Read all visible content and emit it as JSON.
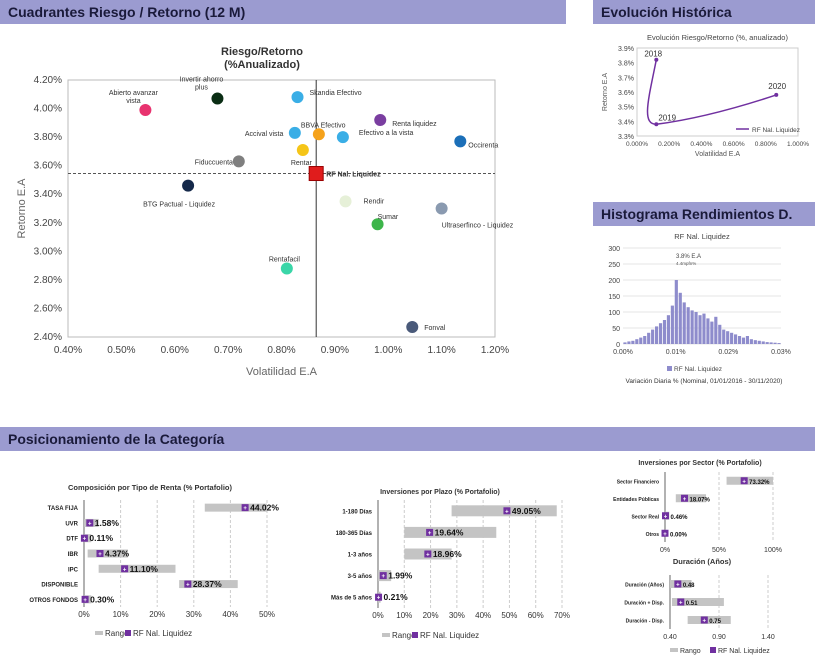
{
  "headers": {
    "risk_return": "Cuadrantes Riesgo / Retorno (12 M)",
    "evolution": "Evolución Histórica",
    "histogram": "Histograma Rendimientos D.",
    "positioning": "Posicionamiento de la Categoría"
  },
  "chart_data": [
    {
      "id": "scatter",
      "type": "scatter",
      "title": "Riesgo/Retorno",
      "subtitle": "(%Anualizado)",
      "xlabel": "Volatilidad E.A",
      "ylabel": "Retorno E.A",
      "xlim": [
        0.4,
        1.2
      ],
      "ylim": [
        2.4,
        4.2
      ],
      "x_ticks": [
        "0.40%",
        "0.50%",
        "0.60%",
        "0.70%",
        "0.80%",
        "0.90%",
        "1.00%",
        "1.10%",
        "1.20%"
      ],
      "y_ticks": [
        "2.40%",
        "2.60%",
        "2.80%",
        "3.00%",
        "3.20%",
        "3.40%",
        "3.60%",
        "3.80%",
        "4.00%",
        "4.20%"
      ],
      "ref_lines": {
        "x": 0.865,
        "y": 3.545
      },
      "points": [
        {
          "label": "Abierto avanzar vista",
          "x": 0.545,
          "y": 3.99,
          "color": "#e8336f"
        },
        {
          "label": "Invertir ahorro plus",
          "x": 0.68,
          "y": 4.07,
          "color": "#0a2d14"
        },
        {
          "label": "Skandia Efectivo",
          "x": 0.83,
          "y": 4.08,
          "color": "#3aaee6"
        },
        {
          "label": "BBVA Efectivo",
          "x": 0.87,
          "y": 3.82,
          "color": "#f5a21b"
        },
        {
          "label": "Accival vista",
          "x": 0.825,
          "y": 3.83,
          "color": "#3aaee6"
        },
        {
          "label": "Efectivo a la vista",
          "x": 0.915,
          "y": 3.8,
          "color": "#3aaee6"
        },
        {
          "label": "Renta liquidez",
          "x": 0.985,
          "y": 3.92,
          "color": "#7a3ea0"
        },
        {
          "label": "Occirenta",
          "x": 1.135,
          "y": 3.77,
          "color": "#1b6fb8"
        },
        {
          "label": "Fiduccuenta",
          "x": 0.72,
          "y": 3.63,
          "color": "#7f7f7f"
        },
        {
          "label": "Rentar",
          "x": 0.84,
          "y": 3.71,
          "color": "#f5c518"
        },
        {
          "label": "RF Nal. Liquidez",
          "x": 0.865,
          "y": 3.545,
          "color": "#e01c1c"
        },
        {
          "label": "BTG Pactual - Liquidez",
          "x": 0.625,
          "y": 3.46,
          "color": "#15294a"
        },
        {
          "label": "Rendir",
          "x": 0.92,
          "y": 3.35,
          "color": "#e6f0d8"
        },
        {
          "label": "Ultraserfinco - Liquidez",
          "x": 1.1,
          "y": 3.3,
          "color": "#8a9ab0"
        },
        {
          "label": "Sumar",
          "x": 0.98,
          "y": 3.19,
          "color": "#3db54a"
        },
        {
          "label": "Rentafacil",
          "x": 0.81,
          "y": 2.88,
          "color": "#3ad6a8"
        },
        {
          "label": "Fonval",
          "x": 1.045,
          "y": 2.47,
          "color": "#4a5a7a"
        }
      ]
    },
    {
      "id": "evolution",
      "type": "line",
      "title": "Evolución Riesgo/Retorno (%, anualizado)",
      "xlabel": "Volatilidad E.A",
      "ylabel": "Retorno E.A",
      "xlim": [
        0.0,
        1.0
      ],
      "ylim": [
        3.3,
        3.9
      ],
      "x_ticks": [
        "0.000%",
        "0.200%",
        "0.400%",
        "0.600%",
        "0.800%",
        "1.000%"
      ],
      "y_ticks": [
        "3.3%",
        "3.4%",
        "3.5%",
        "3.6%",
        "3.7%",
        "3.8%",
        "3.9%"
      ],
      "legend": "RF Nal. Liquidez",
      "points": [
        {
          "label": "2018",
          "x": 0.12,
          "y": 3.82
        },
        {
          "label": "2019",
          "x": 0.12,
          "y": 3.38
        },
        {
          "label": "2020",
          "x": 0.865,
          "y": 3.58
        }
      ]
    },
    {
      "id": "histogram",
      "type": "bar",
      "title": "RF Nal. Liquidez",
      "ylim": [
        0,
        300
      ],
      "y_ticks": [
        "0",
        "50",
        "100",
        "150",
        "200",
        "250",
        "300"
      ],
      "x_ticks": [
        "0.00%",
        "0.01%",
        "0.02%",
        "0.03%"
      ],
      "xlim": [
        0.0,
        0.03
      ],
      "annotation": "3.8% E.A",
      "annotation_sub": "4.4mpfn%",
      "legend": "RF Nal. Liquidez",
      "footnote": "Variación Diaria % (Nominal, 01/01/2016 - 30/11/2020)",
      "values": [
        5,
        8,
        10,
        15,
        20,
        25,
        35,
        45,
        55,
        65,
        75,
        90,
        120,
        200,
        160,
        130,
        115,
        105,
        100,
        90,
        95,
        80,
        70,
        85,
        60,
        45,
        40,
        35,
        30,
        25,
        20,
        25,
        15,
        12,
        10,
        8,
        6,
        5,
        4,
        3
      ]
    },
    {
      "id": "composition",
      "type": "bar",
      "title": "Composición por Tipo de Renta  (% Portafolio)",
      "xlim": [
        0,
        50
      ],
      "x_ticks": [
        "0%",
        "10%",
        "20%",
        "30%",
        "40%",
        "50%"
      ],
      "legend": [
        "Rango",
        "RF Nal. Liquidez"
      ],
      "rows": [
        {
          "label": "TASA FIJA",
          "value": 44.02,
          "text": "44.02%",
          "range": [
            33,
            50
          ]
        },
        {
          "label": "UVR",
          "value": 1.58,
          "text": "1.58%",
          "range": [
            0,
            4
          ]
        },
        {
          "label": "DTF",
          "value": 0.11,
          "text": "0.11%",
          "range": [
            0,
            2
          ]
        },
        {
          "label": "IBR",
          "value": 4.37,
          "text": "4.37%",
          "range": [
            1,
            12
          ]
        },
        {
          "label": "IPC",
          "value": 11.1,
          "text": "11.10%",
          "range": [
            4,
            25
          ]
        },
        {
          "label": "DISPONIBLE",
          "value": 28.37,
          "text": "28.37%",
          "range": [
            26,
            42
          ]
        },
        {
          "label": "OTROS FONDOS",
          "value": 0.3,
          "text": "0.30%",
          "range": [
            0,
            2
          ]
        }
      ]
    },
    {
      "id": "term",
      "type": "bar",
      "title": "Inversiones por Plazo  (% Portafolio)",
      "xlim": [
        0,
        70
      ],
      "x_ticks": [
        "0%",
        "10%",
        "20%",
        "30%",
        "40%",
        "50%",
        "60%",
        "70%"
      ],
      "legend": [
        "Rango",
        "RF Nal. Liquidez"
      ],
      "rows": [
        {
          "label": "1-180 Días",
          "value": 49.05,
          "text": "49.05%",
          "range": [
            28,
            68
          ]
        },
        {
          "label": "180-365 Días",
          "value": 19.64,
          "text": "19.64%",
          "range": [
            10,
            45
          ]
        },
        {
          "label": "1-3 años",
          "value": 18.96,
          "text": "18.96%",
          "range": [
            10,
            28
          ]
        },
        {
          "label": "3-5 años",
          "value": 1.99,
          "text": "1.99%",
          "range": [
            0,
            5
          ]
        },
        {
          "label": "Más de 5 años",
          "value": 0.21,
          "text": "0.21%",
          "range": [
            0,
            1
          ]
        }
      ]
    },
    {
      "id": "sector",
      "type": "bar",
      "title": "Inversiones por Sector  (% Portafolio)",
      "xlim": [
        0,
        100
      ],
      "x_ticks": [
        "0%",
        "50%",
        "100%"
      ],
      "rows": [
        {
          "label": "Sector Financiero",
          "value": 73.32,
          "text": "73.32%",
          "range": [
            57,
            100
          ]
        },
        {
          "label": "Entidades Públicas",
          "value": 18.07,
          "text": "18.07%",
          "range": [
            10,
            38
          ]
        },
        {
          "label": "Sector Real",
          "value": 0.46,
          "text": "0.46%",
          "range": [
            0,
            4
          ]
        },
        {
          "label": "Otros",
          "value": 0.0,
          "text": "0.00%",
          "range": [
            0,
            1
          ]
        }
      ]
    },
    {
      "id": "duration",
      "type": "bar",
      "title": "Duración    (Años)",
      "xlim": [
        0.4,
        1.4
      ],
      "x_ticks": [
        "0.40",
        "0.90",
        "1.40"
      ],
      "legend": [
        "Rango",
        "RF Nal. Liquidez"
      ],
      "rows": [
        {
          "label": "Duración (Años)",
          "value": 0.48,
          "text": "0.48",
          "range": [
            0.4,
            0.62
          ]
        },
        {
          "label": "Duración + Disp.",
          "value": 0.51,
          "text": "0.51",
          "range": [
            0.42,
            0.95
          ]
        },
        {
          "label": "Duración - Disp.",
          "value": 0.75,
          "text": "0.75",
          "range": [
            0.58,
            1.02
          ]
        }
      ]
    }
  ]
}
